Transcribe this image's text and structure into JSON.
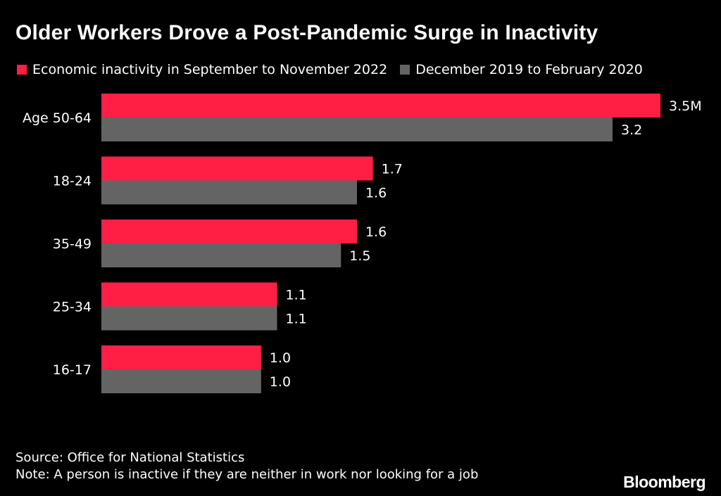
{
  "chart_data": {
    "type": "bar",
    "orientation": "horizontal",
    "title": "Older Workers Drove a Post-Pandemic Surge in Inactivity",
    "categories": [
      "Age 50-64",
      "18-24",
      "35-49",
      "25-34",
      "16-17"
    ],
    "series": [
      {
        "name": "Economic inactivity in September to November 2022",
        "color": "#ff1f44",
        "values": [
          3.5,
          1.7,
          1.6,
          1.1,
          1.0
        ],
        "labels": [
          "3.5M",
          "1.7",
          "1.6",
          "1.1",
          "1.0"
        ]
      },
      {
        "name": "December 2019 to February 2020",
        "color": "#646464",
        "values": [
          3.2,
          1.6,
          1.5,
          1.1,
          1.0
        ],
        "labels": [
          "3.2",
          "1.6",
          "1.5",
          "1.1",
          "1.0"
        ]
      }
    ],
    "xlim": [
      0,
      3.5
    ],
    "grid": false,
    "legend_position": "top-left"
  },
  "source": "Source: Office for National Statistics",
  "note": "Note: A person is inactive if they are neither in work nor looking for a job",
  "brand": "Bloomberg"
}
